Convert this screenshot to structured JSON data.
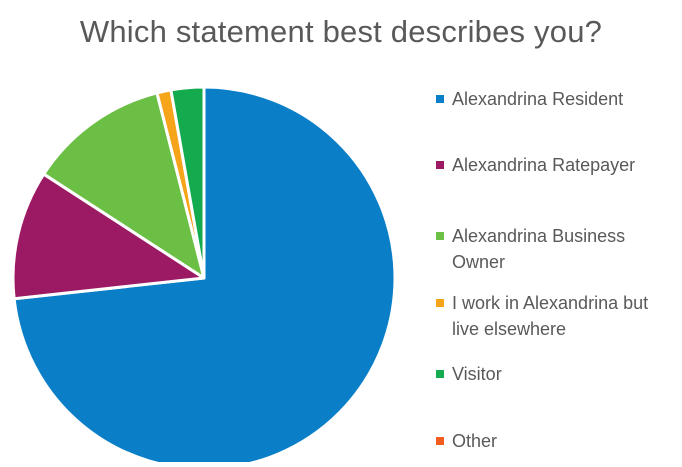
{
  "chart_data": {
    "type": "pie",
    "title": "Which statement best describes you?",
    "series": [
      {
        "values": [
          74.0,
          11.0,
          12.0,
          1.2,
          2.8,
          0.0
        ]
      }
    ],
    "categories": [
      "Alexandrina Resident",
      "Alexandrina Ratepayer",
      "Alexandrina Business Owner",
      "I work in Alexandrina but live elsewhere",
      "Visitor",
      "Other"
    ],
    "legend_labels": [
      "Alexandrina Resident",
      "Alexandrina Ratepayer",
      "Alexandrina Business Owner",
      "I work in Alexandrina but live elsewhere",
      "Visitor",
      "Other"
    ],
    "colors": [
      "#0a7fc8",
      "#9b1a63",
      "#6cbf45",
      "#f6a51a",
      "#14aa4e",
      "#f25c1f"
    ],
    "legend_position": "right"
  }
}
